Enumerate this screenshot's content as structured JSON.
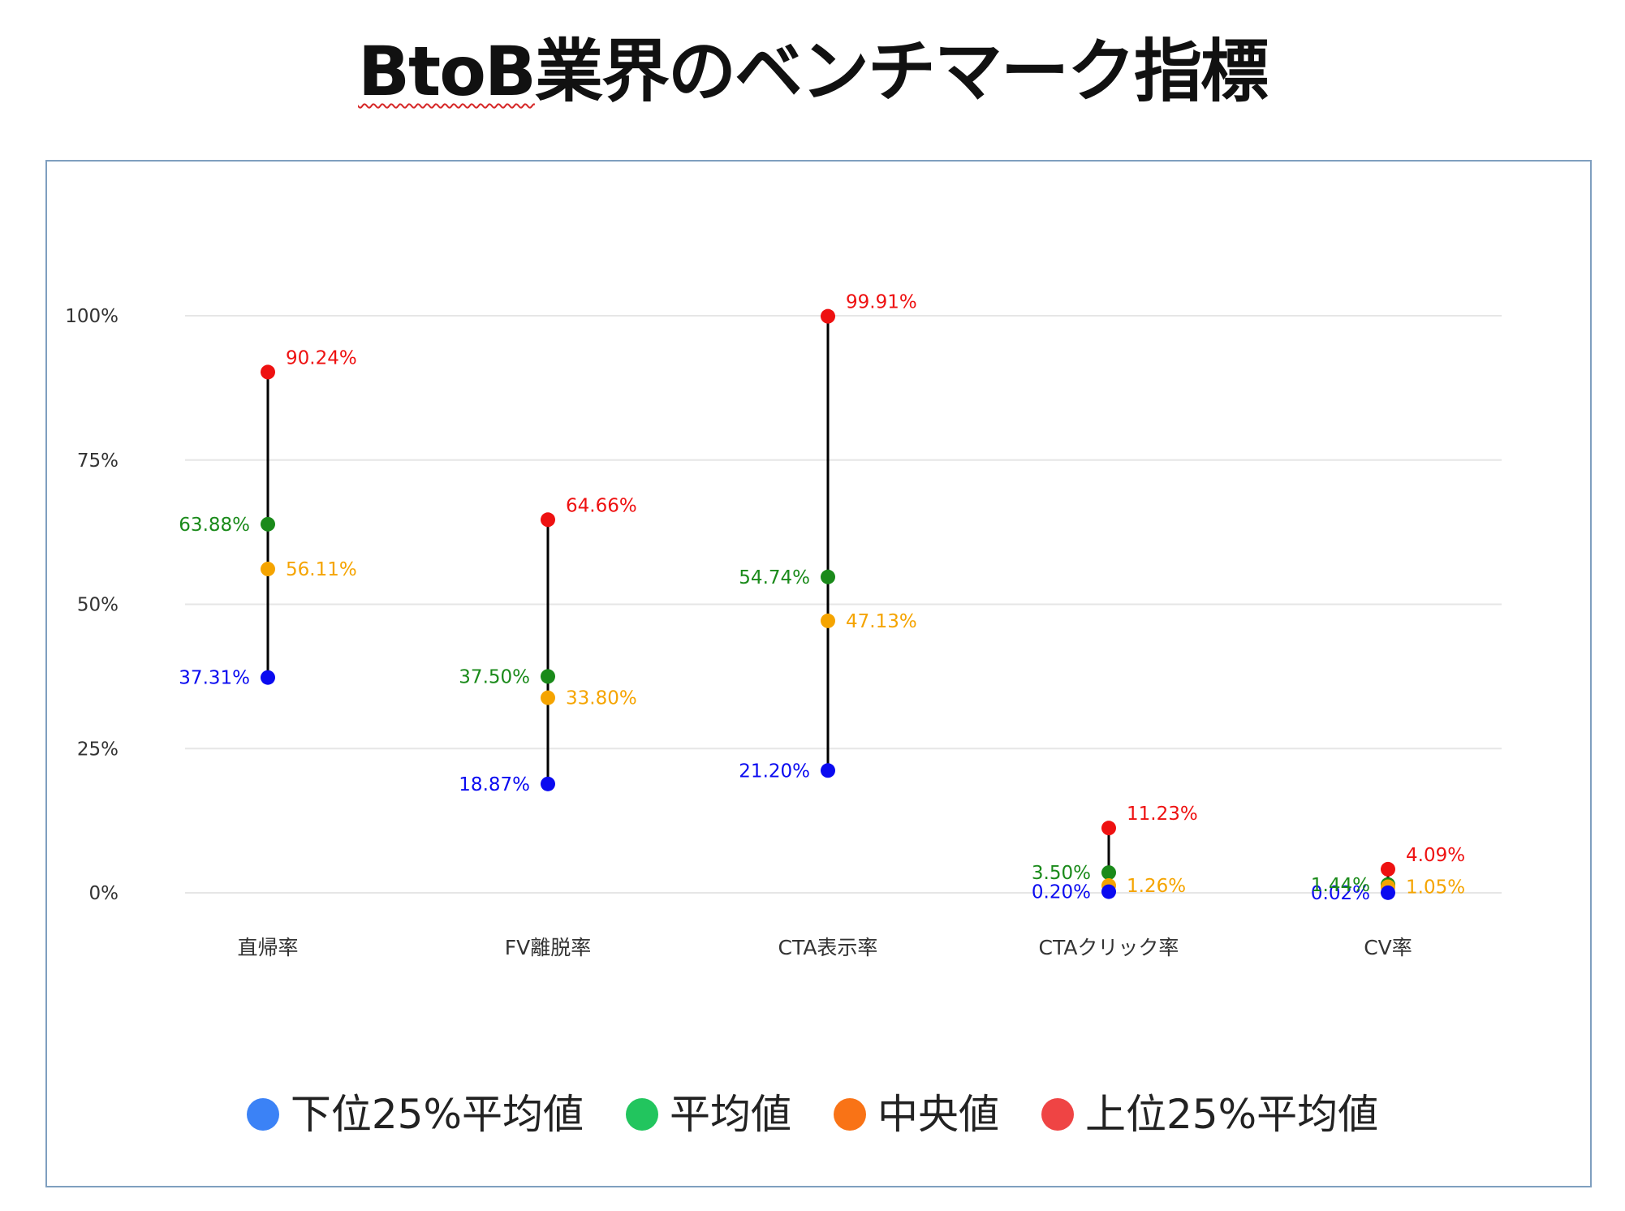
{
  "page": {
    "title_prefix": "BtoB",
    "title_suffix": "業界のベンチマーク指標"
  },
  "colors": {
    "low25": "#0a0af0",
    "average": "#1a8a1a",
    "median": "#f5a400",
    "top25": "#ee1111",
    "stem": "#000000",
    "grid": "#e6e6e6",
    "axis_text": "#333333",
    "legend_low25": "#3b82f6",
    "legend_average": "#22c55e",
    "legend_median": "#f97316",
    "legend_top25": "#ef4444"
  },
  "legend": [
    {
      "key": "low25",
      "label": "下位25%平均値"
    },
    {
      "key": "average",
      "label": "平均値"
    },
    {
      "key": "median",
      "label": "中央値"
    },
    {
      "key": "top25",
      "label": "上位25%平均値"
    }
  ],
  "chart_data": {
    "type": "scatter",
    "subtype": "dot-range",
    "title": "BtoB業界のベンチマーク指標",
    "categories": [
      "直帰率",
      "FV離脱率",
      "CTA表示率",
      "CTAクリック率",
      "CV率"
    ],
    "ylim": [
      0,
      100
    ],
    "yticks": [
      0,
      25,
      50,
      75,
      100
    ],
    "ytick_labels": [
      "0%",
      "25%",
      "50%",
      "75%",
      "100%"
    ],
    "grid": true,
    "legend_position": "bottom",
    "series": [
      {
        "key": "low25",
        "name": "下位25%平均値",
        "values": [
          37.31,
          18.87,
          21.2,
          0.2,
          0.02
        ],
        "labels": [
          "37.31%",
          "18.87%",
          "21.20%",
          "0.20%",
          "0.02%"
        ],
        "label_side": [
          "left",
          "left",
          "left",
          "left",
          "left"
        ]
      },
      {
        "key": "average",
        "name": "平均値",
        "values": [
          63.88,
          37.5,
          54.74,
          3.5,
          1.44
        ],
        "labels": [
          "63.88%",
          "37.50%",
          "54.74%",
          "3.50%",
          "1.44%"
        ],
        "label_side": [
          "left",
          "left",
          "left",
          "left",
          "left"
        ]
      },
      {
        "key": "median",
        "name": "中央値",
        "values": [
          56.11,
          33.8,
          47.13,
          1.26,
          1.05
        ],
        "labels": [
          "56.11%",
          "33.80%",
          "47.13%",
          "1.26%",
          "1.05%"
        ],
        "label_side": [
          "right",
          "right",
          "right",
          "right",
          "right"
        ]
      },
      {
        "key": "top25",
        "name": "上位25%平均値",
        "values": [
          90.24,
          64.66,
          99.91,
          11.23,
          4.09
        ],
        "labels": [
          "90.24%",
          "64.66%",
          "99.91%",
          "11.23%",
          "4.09%"
        ],
        "label_side": [
          "right-up",
          "right-up",
          "right-up",
          "right-up",
          "right-up"
        ]
      }
    ]
  }
}
